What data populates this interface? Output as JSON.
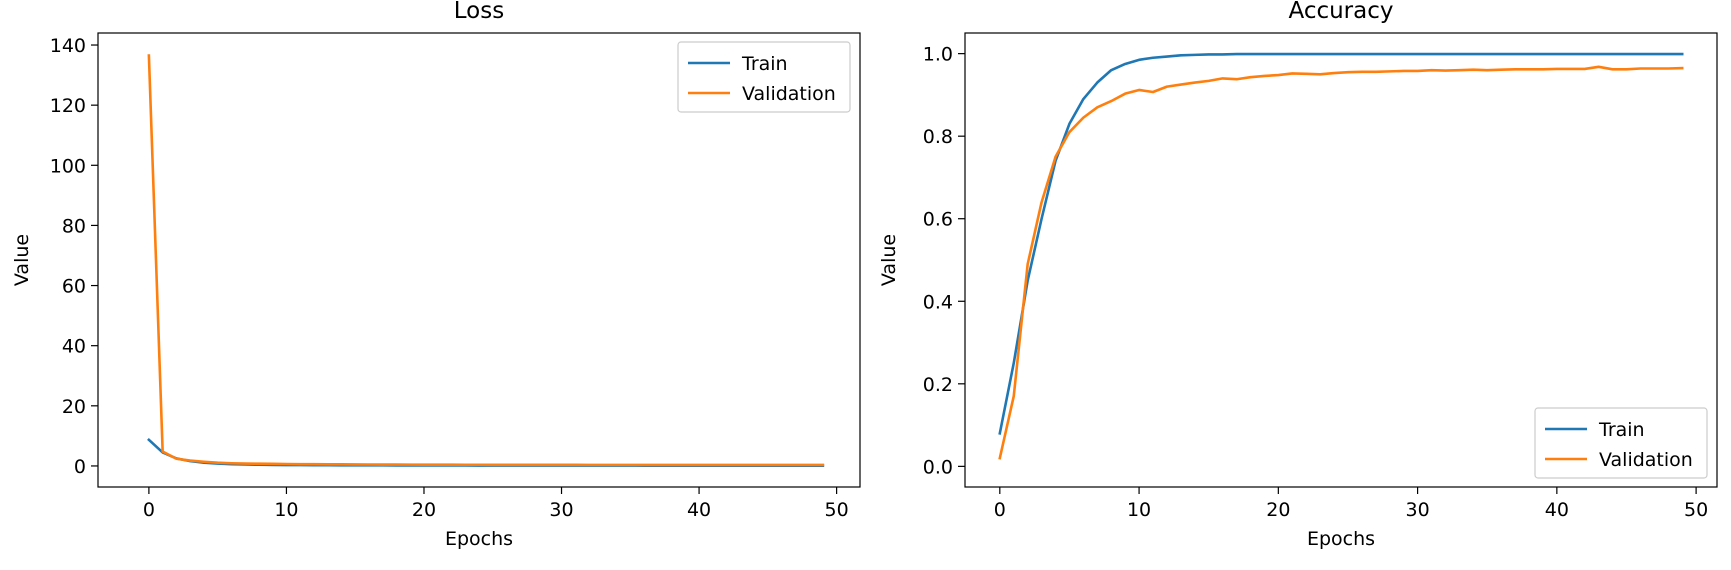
{
  "chart_data": [
    {
      "type": "line",
      "title": "Loss",
      "xlabel": "Epochs",
      "ylabel": "Value",
      "xlim": [
        -3.7,
        51.7
      ],
      "ylim": [
        -7,
        144
      ],
      "xticks": [
        0,
        10,
        20,
        30,
        40,
        50
      ],
      "yticks": [
        0,
        20,
        40,
        60,
        80,
        100,
        120,
        140
      ],
      "legend": "top-right",
      "x": [
        0,
        1,
        2,
        3,
        4,
        5,
        6,
        7,
        8,
        9,
        10,
        11,
        12,
        13,
        14,
        15,
        16,
        17,
        18,
        19,
        20,
        21,
        22,
        23,
        24,
        25,
        26,
        27,
        28,
        29,
        30,
        31,
        32,
        33,
        34,
        35,
        36,
        37,
        38,
        39,
        40,
        41,
        42,
        43,
        44,
        45,
        46,
        47,
        48,
        49
      ],
      "series": [
        {
          "name": "Train",
          "color": "#1f77b4",
          "values": [
            8.7,
            4.5,
            2.5,
            1.6,
            1.1,
            0.8,
            0.6,
            0.5,
            0.4,
            0.35,
            0.3,
            0.28,
            0.26,
            0.24,
            0.22,
            0.21,
            0.2,
            0.19,
            0.18,
            0.17,
            0.16,
            0.16,
            0.15,
            0.15,
            0.14,
            0.14,
            0.13,
            0.13,
            0.13,
            0.12,
            0.12,
            0.12,
            0.11,
            0.11,
            0.11,
            0.11,
            0.1,
            0.1,
            0.1,
            0.1,
            0.1,
            0.1,
            0.1,
            0.1,
            0.1,
            0.1,
            0.1,
            0.1,
            0.1,
            0.1
          ]
        },
        {
          "name": "Validation",
          "color": "#ff7f0e",
          "values": [
            136.5,
            4.8,
            2.4,
            1.8,
            1.4,
            1.1,
            0.9,
            0.8,
            0.75,
            0.7,
            0.65,
            0.6,
            0.58,
            0.55,
            0.53,
            0.5,
            0.48,
            0.47,
            0.45,
            0.44,
            0.43,
            0.42,
            0.41,
            0.4,
            0.4,
            0.39,
            0.39,
            0.38,
            0.38,
            0.37,
            0.37,
            0.37,
            0.36,
            0.36,
            0.36,
            0.36,
            0.35,
            0.35,
            0.35,
            0.35,
            0.35,
            0.35,
            0.35,
            0.35,
            0.35,
            0.35,
            0.35,
            0.35,
            0.35,
            0.35
          ]
        }
      ]
    },
    {
      "type": "line",
      "title": "Accuracy",
      "xlabel": "Epochs",
      "ylabel": "Value",
      "xlim": [
        -2.5,
        51.5
      ],
      "ylim": [
        -0.05,
        1.05
      ],
      "xticks": [
        0,
        10,
        20,
        30,
        40,
        50
      ],
      "yticks": [
        0.0,
        0.2,
        0.4,
        0.6,
        0.8,
        1.0
      ],
      "legend": "bottom-right",
      "x": [
        0,
        1,
        2,
        3,
        4,
        5,
        6,
        7,
        8,
        9,
        10,
        11,
        12,
        13,
        14,
        15,
        16,
        17,
        18,
        19,
        20,
        21,
        22,
        23,
        24,
        25,
        26,
        27,
        28,
        29,
        30,
        31,
        32,
        33,
        34,
        35,
        36,
        37,
        38,
        39,
        40,
        41,
        42,
        43,
        44,
        45,
        46,
        47,
        48,
        49
      ],
      "series": [
        {
          "name": "Train",
          "color": "#1f77b4",
          "values": [
            0.08,
            0.25,
            0.45,
            0.6,
            0.74,
            0.83,
            0.89,
            0.93,
            0.96,
            0.975,
            0.985,
            0.99,
            0.993,
            0.996,
            0.997,
            0.998,
            0.998,
            0.999,
            0.999,
            0.999,
            0.999,
            0.999,
            0.999,
            0.999,
            0.999,
            0.999,
            0.999,
            0.999,
            0.999,
            0.999,
            0.999,
            0.999,
            0.999,
            0.999,
            0.999,
            0.999,
            0.999,
            0.999,
            0.999,
            0.999,
            0.999,
            0.999,
            0.999,
            0.999,
            0.999,
            0.999,
            0.999,
            0.999,
            0.999,
            0.999
          ]
        },
        {
          "name": "Validation",
          "color": "#ff7f0e",
          "values": [
            0.02,
            0.17,
            0.49,
            0.64,
            0.75,
            0.81,
            0.845,
            0.87,
            0.885,
            0.903,
            0.912,
            0.907,
            0.92,
            0.925,
            0.93,
            0.934,
            0.94,
            0.938,
            0.943,
            0.946,
            0.948,
            0.952,
            0.951,
            0.95,
            0.953,
            0.955,
            0.956,
            0.956,
            0.957,
            0.958,
            0.958,
            0.96,
            0.959,
            0.96,
            0.961,
            0.96,
            0.961,
            0.962,
            0.962,
            0.962,
            0.963,
            0.963,
            0.963,
            0.968,
            0.962,
            0.962,
            0.964,
            0.964,
            0.964,
            0.965
          ]
        }
      ]
    }
  ]
}
